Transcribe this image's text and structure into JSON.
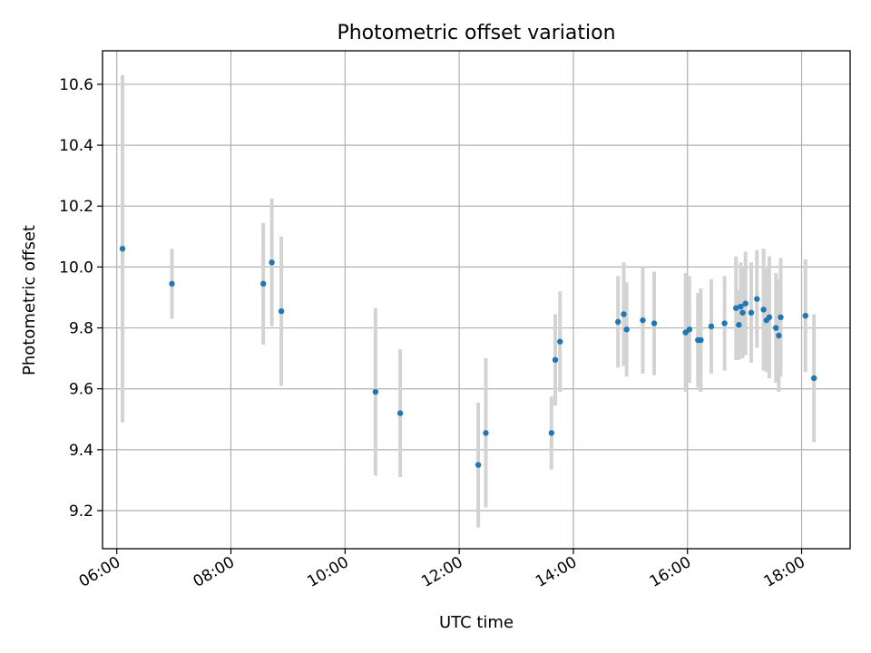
{
  "chart_data": {
    "type": "scatter",
    "title": "Photometric offset variation",
    "xlabel": "UTC time",
    "ylabel": "Photometric offset",
    "x_ticks": [
      "06:00",
      "08:00",
      "10:00",
      "12:00",
      "14:00",
      "16:00",
      "18:00"
    ],
    "y_ticks": [
      9.2,
      9.4,
      9.6,
      9.8,
      10.0,
      10.2,
      10.4,
      10.6
    ],
    "xlim": [
      "05:45",
      "18:51"
    ],
    "ylim": [
      9.075,
      10.71
    ],
    "grid": true,
    "colors": {
      "point": "#1f77b4",
      "errorbar": "#d3d3d3"
    },
    "points": [
      {
        "x": "06:06",
        "y": 10.06,
        "err": 0.57
      },
      {
        "x": "06:58",
        "y": 9.945,
        "err": 0.115
      },
      {
        "x": "08:34",
        "y": 9.945,
        "err": 0.2
      },
      {
        "x": "08:43",
        "y": 10.015,
        "err": 0.21
      },
      {
        "x": "08:53",
        "y": 9.855,
        "err": 0.245
      },
      {
        "x": "10:32",
        "y": 9.59,
        "err": 0.275
      },
      {
        "x": "10:58",
        "y": 9.52,
        "err": 0.21
      },
      {
        "x": "12:20",
        "y": 9.35,
        "err": 0.205
      },
      {
        "x": "12:28",
        "y": 9.455,
        "err": 0.245
      },
      {
        "x": "13:37",
        "y": 9.455,
        "err": 0.12
      },
      {
        "x": "13:41",
        "y": 9.695,
        "err": 0.15
      },
      {
        "x": "13:46",
        "y": 9.755,
        "err": 0.165
      },
      {
        "x": "14:47",
        "y": 9.82,
        "err": 0.15
      },
      {
        "x": "14:53",
        "y": 9.845,
        "err": 0.17
      },
      {
        "x": "14:56",
        "y": 9.795,
        "err": 0.155
      },
      {
        "x": "15:13",
        "y": 9.825,
        "err": 0.175
      },
      {
        "x": "15:25",
        "y": 9.815,
        "err": 0.17
      },
      {
        "x": "15:58",
        "y": 9.785,
        "err": 0.195
      },
      {
        "x": "16:02",
        "y": 9.795,
        "err": 0.175
      },
      {
        "x": "16:11",
        "y": 9.76,
        "err": 0.155
      },
      {
        "x": "16:14",
        "y": 9.76,
        "err": 0.17
      },
      {
        "x": "16:25",
        "y": 9.805,
        "err": 0.155
      },
      {
        "x": "16:39",
        "y": 9.815,
        "err": 0.155
      },
      {
        "x": "16:51",
        "y": 9.865,
        "err": 0.17
      },
      {
        "x": "16:54",
        "y": 9.81,
        "err": 0.115
      },
      {
        "x": "16:56",
        "y": 9.87,
        "err": 0.145
      },
      {
        "x": "16:58",
        "y": 9.85,
        "err": 0.15
      },
      {
        "x": "17:01",
        "y": 9.88,
        "err": 0.17
      },
      {
        "x": "17:07",
        "y": 9.85,
        "err": 0.165
      },
      {
        "x": "17:13",
        "y": 9.895,
        "err": 0.16
      },
      {
        "x": "17:20",
        "y": 9.86,
        "err": 0.2
      },
      {
        "x": "17:23",
        "y": 9.825,
        "err": 0.17
      },
      {
        "x": "17:26",
        "y": 9.835,
        "err": 0.2
      },
      {
        "x": "17:33",
        "y": 9.8,
        "err": 0.18
      },
      {
        "x": "17:36",
        "y": 9.775,
        "err": 0.185
      },
      {
        "x": "17:38",
        "y": 9.835,
        "err": 0.195
      },
      {
        "x": "18:04",
        "y": 9.84,
        "err": 0.185
      },
      {
        "x": "18:13",
        "y": 9.635,
        "err": 0.21
      }
    ]
  }
}
